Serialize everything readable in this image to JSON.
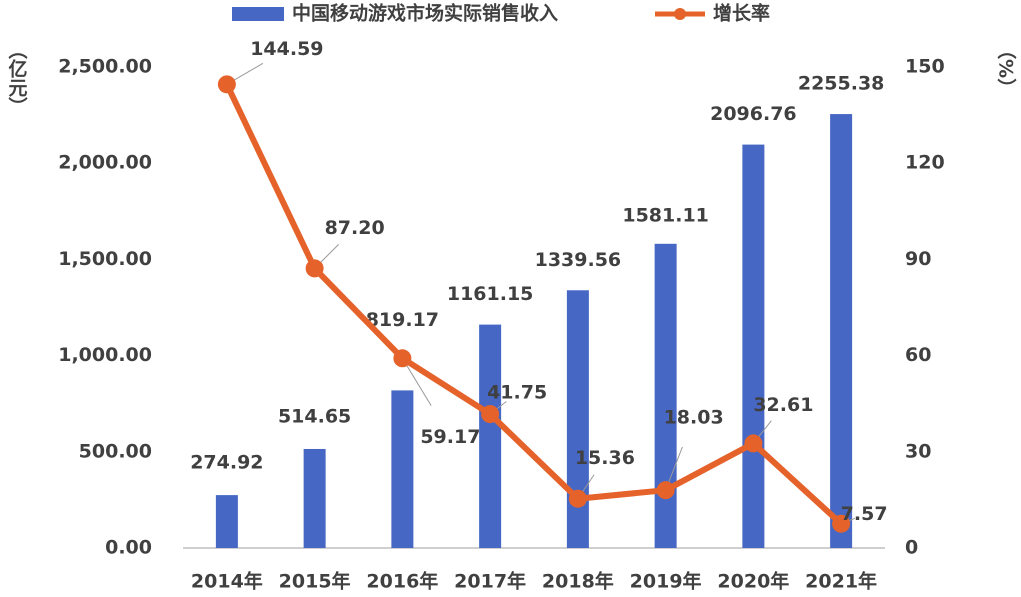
{
  "chart_data": {
    "type": "bar-line",
    "categories": [
      "2014年",
      "2015年",
      "2016年",
      "2017年",
      "2018年",
      "2019年",
      "2020年",
      "2021年"
    ],
    "y_label": "（亿元）",
    "y2_label": "（%）",
    "series": [
      {
        "name": "中国移动游戏市场实际销售收入",
        "type": "bar",
        "color": "#4668c4",
        "values": [
          274.92,
          514.65,
          819.17,
          1161.15,
          1339.56,
          1581.11,
          2096.76,
          2255.38
        ]
      },
      {
        "name": "增长率",
        "type": "line",
        "axis": "y2",
        "color": "#e5622a",
        "values": [
          144.59,
          87.2,
          59.17,
          41.75,
          15.36,
          18.03,
          32.61,
          7.57
        ],
        "value_labels": [
          "144.59",
          "87.20",
          "59.17",
          "41.75",
          "15.36",
          "18.03",
          "32.61",
          "7.57"
        ]
      }
    ],
    "ylim": [
      0,
      2500
    ],
    "yticks": [
      {
        "value": 0,
        "label": "0.00"
      },
      {
        "value": 500,
        "label": "500.00"
      },
      {
        "value": 1000,
        "label": "1,000.00"
      },
      {
        "value": 1500,
        "label": "1,500.00"
      },
      {
        "value": 2000,
        "label": "2,000.00"
      },
      {
        "value": 2500,
        "label": "2,500.00"
      }
    ],
    "y2lim": [
      0,
      150
    ],
    "y2ticks": [
      0,
      30,
      60,
      90,
      120,
      150
    ]
  }
}
